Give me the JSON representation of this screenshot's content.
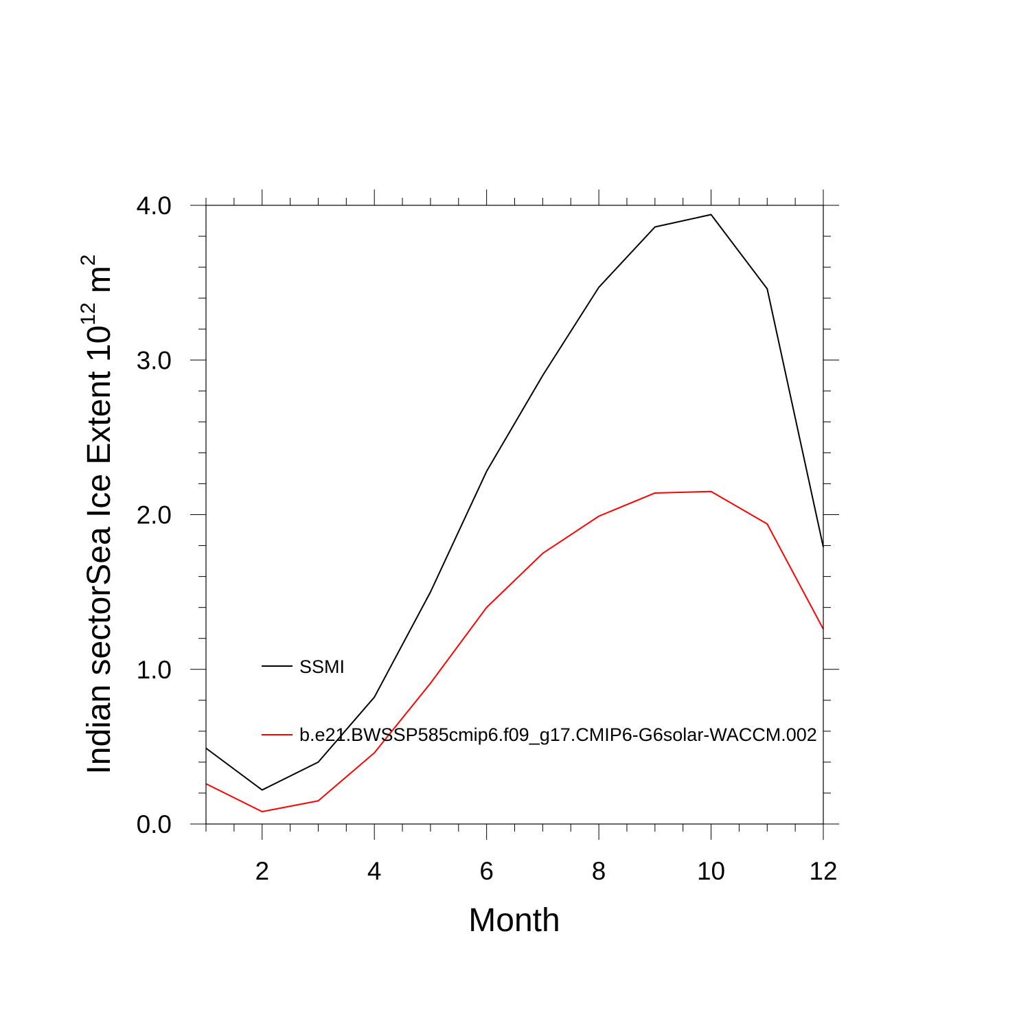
{
  "chart_data": {
    "type": "line",
    "xlabel": "Month",
    "ylabel_main": "Indian sectorSea Ice Extent 10",
    "ylabel_exp": "12",
    "ylabel_unit": " m",
    "ylabel_unit_exp": "2",
    "xlim": [
      1,
      12
    ],
    "ylim": [
      0,
      4
    ],
    "x_ticks": [
      2,
      4,
      6,
      8,
      10,
      12
    ],
    "x_tick_labels": [
      "2",
      "4",
      "6",
      "8",
      "10",
      "12"
    ],
    "y_ticks": [
      0,
      1,
      2,
      3,
      4
    ],
    "y_tick_labels": [
      "0.0",
      "1.0",
      "2.0",
      "3.0",
      "4.0"
    ],
    "x": [
      1,
      2,
      3,
      4,
      5,
      6,
      7,
      8,
      9,
      10,
      11,
      12
    ],
    "series": [
      {
        "name": "SSMI",
        "color": "#000000",
        "values": [
          0.49,
          0.22,
          0.4,
          0.82,
          1.5,
          2.28,
          2.9,
          3.47,
          3.86,
          3.94,
          3.46,
          1.79
        ]
      },
      {
        "name": "b.e21.BWSSP585cmip6.f09_g17.CMIP6-G6solar-WACCM.002",
        "color": "#ff0000",
        "values": [
          0.26,
          0.08,
          0.15,
          0.46,
          0.91,
          1.4,
          1.75,
          1.99,
          2.14,
          2.15,
          1.94,
          1.26
        ]
      }
    ],
    "legend": "inside-left"
  }
}
